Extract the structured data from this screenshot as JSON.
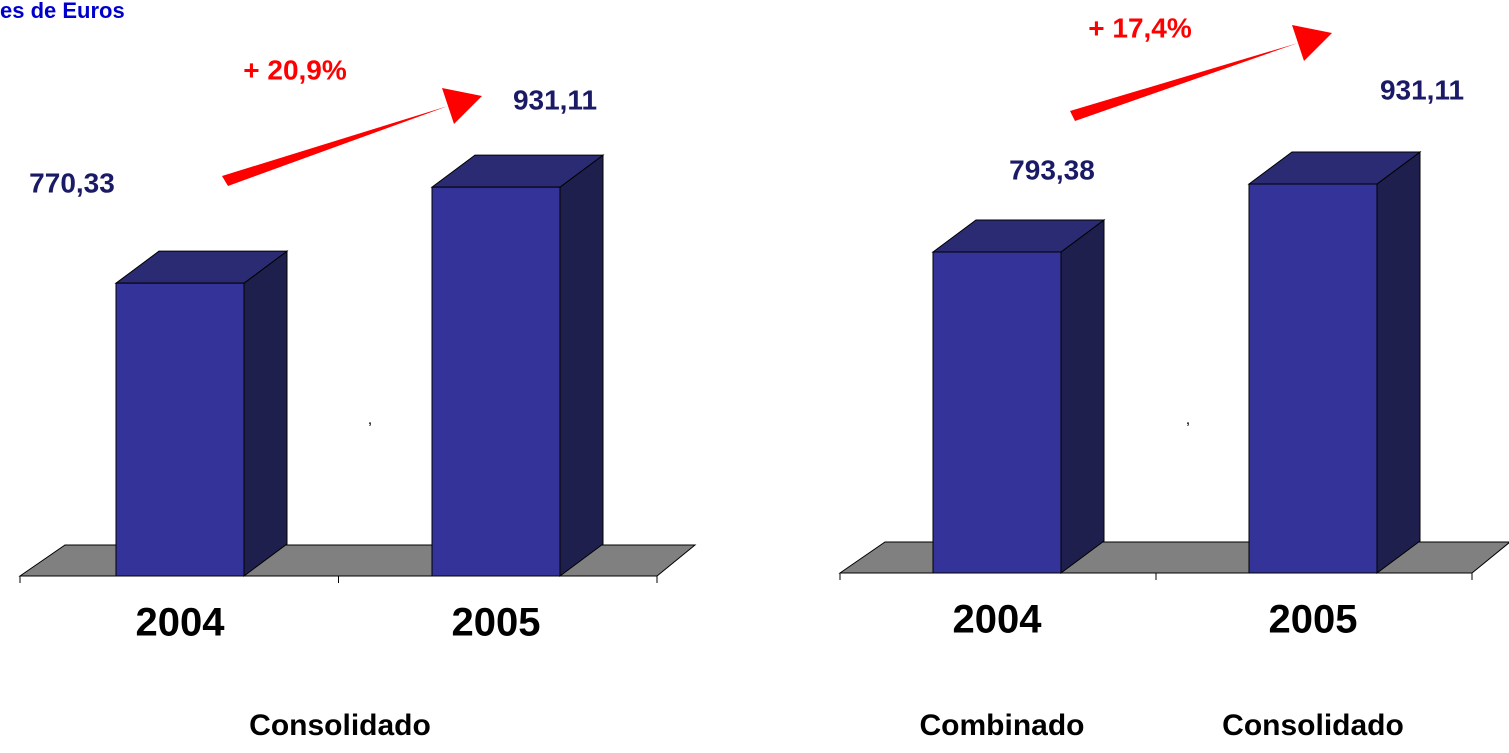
{
  "chart_data": [
    {
      "type": "bar3d",
      "title": "es de Euros",
      "annotation": "+ 20,9%",
      "mark": ",",
      "categories": [
        "2004",
        "2005"
      ],
      "values": [
        770.33,
        931.11
      ],
      "value_labels": [
        "770,33",
        "931,11"
      ],
      "group_labels": [
        "Consolidado"
      ],
      "ylim": [
        280,
        1000
      ],
      "color": "#333399",
      "arrow_color": "#ff0000"
    },
    {
      "type": "bar3d",
      "annotation": "+ 17,4%",
      "mark": ",",
      "categories": [
        "2004",
        "2005"
      ],
      "values": [
        793.38,
        931.11
      ],
      "value_labels": [
        "793,38",
        "931,11"
      ],
      "group_labels": [
        "Combinado",
        "Consolidado"
      ],
      "ylim": [
        143,
        1000
      ],
      "color": "#333399",
      "arrow_color": "#ff0000"
    }
  ]
}
